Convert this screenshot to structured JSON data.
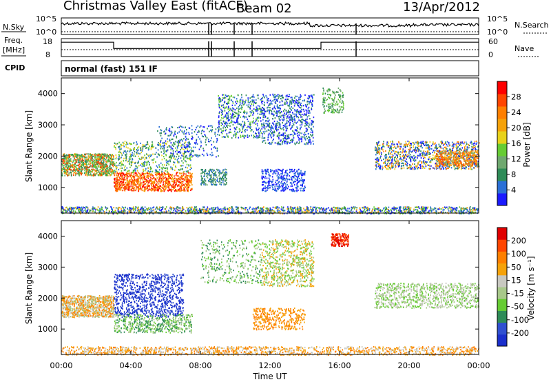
{
  "header": {
    "station": "Christmas Valley East (fitACF)",
    "beam": "Beam 02",
    "date": "13/Apr/2012"
  },
  "noise_panel": {
    "left_label": "N.Sky",
    "right_label": "N.Search",
    "left_ticks": [
      "10^5",
      "10^0"
    ],
    "right_ticks": [
      "10^5",
      "10^0"
    ]
  },
  "freq_panel": {
    "left_label_line1": "Freq.",
    "left_label_line2": "[MHz]",
    "right_label": "Nave",
    "left_ticks": [
      "18",
      "8"
    ],
    "right_ticks": [
      "60",
      "0"
    ]
  },
  "cpid": {
    "label": "CPID",
    "value": "normal (fast) 151 IF"
  },
  "chart_data": [
    {
      "type": "heatmap",
      "name_id": "power",
      "ylabel": "Slant Range [km]",
      "yticks": [
        1000,
        2000,
        3000,
        4000
      ],
      "ylim": [
        180,
        4500
      ],
      "colorbar_label": "Power [dB]",
      "colorbar_ticks": [
        "28",
        "24",
        "20",
        "16",
        "12",
        "8",
        "4"
      ],
      "colors": [
        "#1a1aff",
        "#2a6fd6",
        "#2e8b57",
        "#6fa86f",
        "#66cc33",
        "#e8d21a",
        "#f5a20a",
        "#ff7f00",
        "#ff4500",
        "#ff0000"
      ]
    },
    {
      "type": "heatmap",
      "name_id": "velocity",
      "ylabel": "Slant Range [km]",
      "yticks": [
        1000,
        2000,
        3000,
        4000
      ],
      "ylim": [
        180,
        4500
      ],
      "colorbar_label": "Velocity [m s⁻¹]",
      "colorbar_ticks": [
        "200",
        "100",
        "50",
        "15",
        "-15",
        "-50",
        "-100",
        "-200"
      ],
      "colors": [
        "#1a2fcc",
        "#3050d0",
        "#2e8b57",
        "#66cc33",
        "#a8c88a",
        "#c8c8c0",
        "#f5a20a",
        "#ff7f00",
        "#ff4500",
        "#e00000"
      ]
    }
  ],
  "time_axis": {
    "xlabel": "Time UT",
    "ticks": [
      "00:00",
      "04:00",
      "08:00",
      "12:00",
      "16:00",
      "20:00",
      "00:00"
    ]
  }
}
